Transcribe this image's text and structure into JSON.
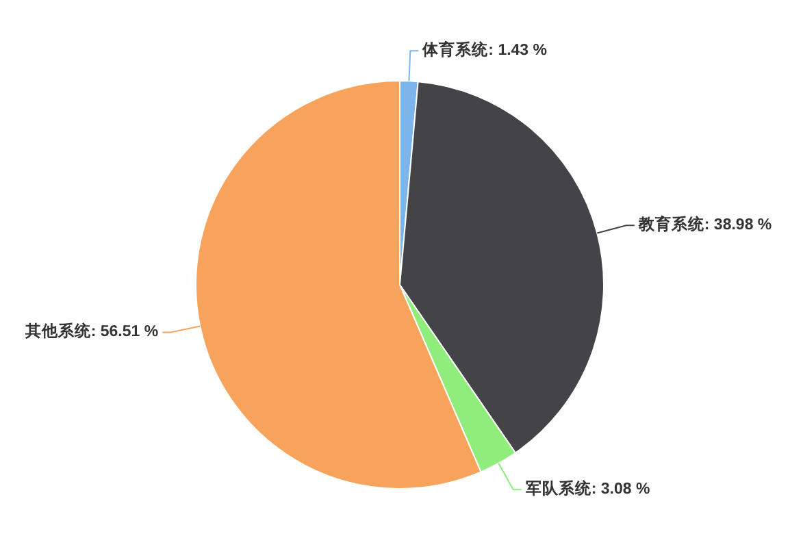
{
  "chart_data": {
    "type": "pie",
    "categories": [
      "体育系统",
      "教育系统",
      "军队系统",
      "其他系统"
    ],
    "values": [
      1.43,
      38.98,
      3.08,
      56.51
    ],
    "colors": [
      "#7cb5ec",
      "#434348",
      "#90ed7d",
      "#f7a35c"
    ],
    "value_labels": [
      "1.43 %",
      "38.98 %",
      "3.08 %",
      "56.51 %"
    ]
  }
}
